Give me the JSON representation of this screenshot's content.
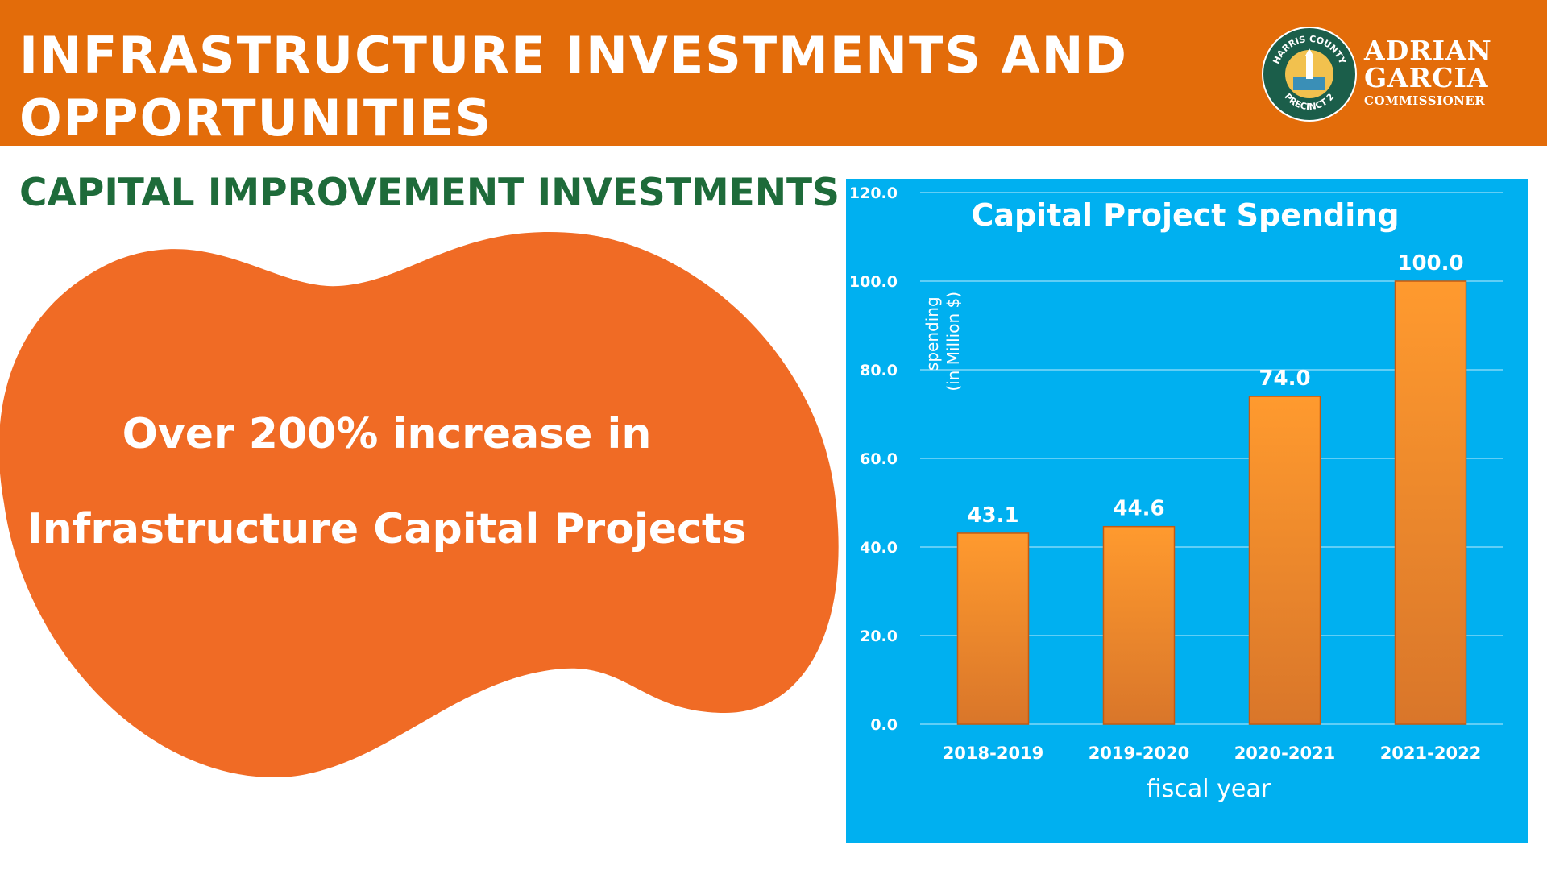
{
  "header": {
    "title_line1": "INFRASTRUCTURE INVESTMENTS AND",
    "title_line2": "OPPORTUNITIES",
    "logo": {
      "seal_top_text": "HARRIS COUNTY",
      "seal_bottom_text": "PRECINCT 2",
      "name_line1": "ADRIAN",
      "name_line2": "GARCIA",
      "role": "COMMISSIONER"
    }
  },
  "section": {
    "title": "CAPITAL IMPROVEMENT INVESTMENTS"
  },
  "highlight": {
    "line1": "Over 200% increase in",
    "line2": "Infrastructure Capital Projects"
  },
  "colors": {
    "header_bg": "#e36c0a",
    "section_title": "#1e6b3a",
    "blob": "#f06b25",
    "chart_bg": "#00b0f0",
    "bar_top": "#ff9a2e",
    "bar_bottom": "#d9762a"
  },
  "chart_data": {
    "type": "bar",
    "title": "Capital Project Spending",
    "xlabel": "fiscal year",
    "ylabel_line1": "spending",
    "ylabel_line2": "(in Million $)",
    "categories": [
      "2018-2019",
      "2019-2020",
      "2020-2021",
      "2021-2022"
    ],
    "values": [
      43.1,
      44.6,
      74.0,
      100.0
    ],
    "ylim": [
      0,
      120
    ],
    "yticks": [
      0,
      20,
      40,
      60,
      80,
      100,
      120
    ],
    "ytick_labels": [
      "0.0",
      "20.0",
      "40.0",
      "60.0",
      "80.0",
      "100.0",
      "120.0"
    ],
    "data_labels": [
      "43.1",
      "44.6",
      "74.0",
      "100.0"
    ],
    "grid": true,
    "legend": "none"
  }
}
